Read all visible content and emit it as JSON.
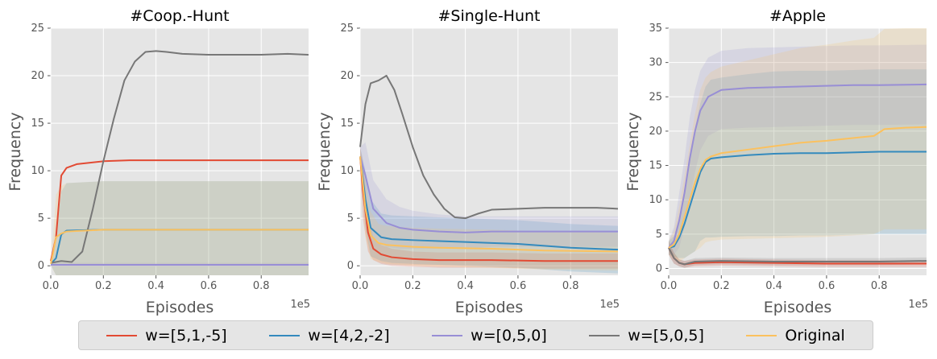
{
  "chart_data": [
    {
      "type": "line",
      "title": "#Coop.-Hunt",
      "xlabel": "Episodes",
      "ylabel": "Frequency",
      "x_offset_label": "1e5",
      "xlim": [
        0,
        0.98
      ],
      "ylim": [
        -1,
        25
      ],
      "xticks": [
        "0.0",
        "0.2",
        "0.4",
        "0.6",
        "0.8"
      ],
      "yticks": [
        0,
        5,
        10,
        15,
        20,
        25
      ],
      "series": [
        {
          "name": "w=[5,1,-5]",
          "color": "#E24A33",
          "x": [
            0,
            0.02,
            0.04,
            0.06,
            0.1,
            0.2,
            0.3,
            0.5,
            0.7,
            0.98
          ],
          "y": [
            0.5,
            3,
            9.5,
            10.3,
            10.7,
            11.0,
            11.1,
            11.1,
            11.1,
            11.1
          ],
          "band": [
            0,
            0,
            0,
            0,
            0,
            0,
            0,
            0,
            0,
            0
          ]
        },
        {
          "name": "w=[4,2,-2]",
          "color": "#348ABD",
          "x": [
            0,
            0.02,
            0.04,
            0.06,
            0.2,
            0.5,
            0.98
          ],
          "y": [
            0.2,
            0.8,
            3.3,
            3.7,
            3.8,
            3.8,
            3.8
          ],
          "band": [
            0.1,
            2,
            4.5,
            5,
            5.1,
            5.1,
            5.1
          ]
        },
        {
          "name": "w=[0,5,0]",
          "color": "#988ED5",
          "x": [
            0,
            0.2,
            0.5,
            0.98
          ],
          "y": [
            0.1,
            0.1,
            0.1,
            0.1
          ],
          "band": [
            0.2,
            0.2,
            0.2,
            0.2
          ]
        },
        {
          "name": "w=[5,0,5]",
          "color": "#777777",
          "x": [
            0,
            0.04,
            0.08,
            0.12,
            0.16,
            0.2,
            0.24,
            0.28,
            0.32,
            0.36,
            0.4,
            0.44,
            0.5,
            0.6,
            0.7,
            0.8,
            0.9,
            0.98
          ],
          "y": [
            0.3,
            0.5,
            0.4,
            1.5,
            6,
            11,
            15.5,
            19.5,
            21.5,
            22.5,
            22.6,
            22.5,
            22.3,
            22.2,
            22.2,
            22.2,
            22.3,
            22.2
          ],
          "band": [
            0,
            0,
            0,
            0,
            0,
            0,
            0,
            0,
            0,
            0,
            0,
            0,
            0,
            0,
            0,
            0,
            0,
            0
          ]
        },
        {
          "name": "Original",
          "color": "#FBC15E",
          "x": [
            0,
            0.01,
            0.02,
            0.04,
            0.06,
            0.2,
            0.5,
            0.98
          ],
          "y": [
            0.2,
            1.5,
            3.0,
            3.4,
            3.6,
            3.8,
            3.8,
            3.8
          ],
          "band": [
            0.1,
            2,
            4.5,
            5,
            5.1,
            5.1,
            5.1,
            5.1
          ]
        }
      ]
    },
    {
      "type": "line",
      "title": "#Single-Hunt",
      "xlabel": "Episodes",
      "ylabel": "Frequency",
      "x_offset_label": "1e5",
      "xlim": [
        0,
        0.98
      ],
      "ylim": [
        -1,
        25
      ],
      "xticks": [
        "0.0",
        "0.2",
        "0.4",
        "0.6",
        "0.8"
      ],
      "yticks": [
        0,
        5,
        10,
        15,
        20,
        25
      ],
      "series": [
        {
          "name": "w=[5,1,-5]",
          "color": "#E24A33",
          "x": [
            0,
            0.01,
            0.03,
            0.05,
            0.08,
            0.12,
            0.2,
            0.3,
            0.5,
            0.7,
            0.98
          ],
          "y": [
            11.5,
            8,
            3.5,
            1.8,
            1.2,
            0.9,
            0.7,
            0.6,
            0.6,
            0.5,
            0.5
          ],
          "band": [
            1,
            3,
            2,
            1.2,
            1,
            0.9,
            0.8,
            0.8,
            0.8,
            0.8,
            0.8
          ]
        },
        {
          "name": "w=[4,2,-2]",
          "color": "#348ABD",
          "x": [
            0,
            0.02,
            0.04,
            0.08,
            0.12,
            0.2,
            0.3,
            0.4,
            0.5,
            0.6,
            0.7,
            0.8,
            0.98
          ],
          "y": [
            11.5,
            7,
            4,
            3.0,
            2.8,
            2.7,
            2.6,
            2.5,
            2.4,
            2.3,
            2.1,
            1.9,
            1.7
          ],
          "band": [
            1,
            3,
            3,
            2.5,
            2.5,
            2.5,
            2.5,
            2.5,
            2.5,
            2.5,
            2.5,
            2.5,
            2.5
          ]
        },
        {
          "name": "w=[0,5,0]",
          "color": "#988ED5",
          "x": [
            0,
            0.02,
            0.05,
            0.1,
            0.15,
            0.2,
            0.3,
            0.4,
            0.5,
            0.6,
            0.8,
            0.98
          ],
          "y": [
            11.5,
            9.5,
            6,
            4.5,
            4,
            3.8,
            3.6,
            3.5,
            3.6,
            3.6,
            3.6,
            3.6
          ],
          "band": [
            1,
            3.5,
            3,
            2.5,
            2.2,
            2,
            1.8,
            1.7,
            1.6,
            1.6,
            1.6,
            1.6
          ]
        },
        {
          "name": "w=[5,0,5]",
          "color": "#777777",
          "x": [
            0,
            0.02,
            0.04,
            0.07,
            0.1,
            0.13,
            0.16,
            0.2,
            0.24,
            0.28,
            0.32,
            0.36,
            0.4,
            0.45,
            0.5,
            0.6,
            0.7,
            0.8,
            0.9,
            0.98
          ],
          "y": [
            12.5,
            17,
            19.2,
            19.5,
            20.0,
            18.5,
            16,
            12.5,
            9.5,
            7.5,
            6.0,
            5.1,
            5.0,
            5.5,
            5.9,
            6.0,
            6.1,
            6.1,
            6.1,
            6.0
          ],
          "band": [
            0,
            0,
            0,
            0,
            0,
            0,
            0,
            0,
            0,
            0,
            0,
            0,
            0,
            0,
            0,
            0,
            0,
            0,
            0,
            0
          ]
        },
        {
          "name": "Original",
          "color": "#FBC15E",
          "x": [
            0,
            0.02,
            0.04,
            0.07,
            0.1,
            0.2,
            0.3,
            0.5,
            0.7,
            0.98
          ],
          "y": [
            11.5,
            6,
            3.2,
            2.4,
            2.2,
            2.0,
            1.9,
            1.8,
            1.6,
            1.5
          ],
          "band": [
            1,
            3,
            2.5,
            2,
            2,
            2,
            2,
            2,
            2,
            2
          ]
        }
      ]
    },
    {
      "type": "line",
      "title": "#Apple",
      "xlabel": "Episodes",
      "ylabel": "Frequency",
      "x_offset_label": "1e5",
      "xlim": [
        0,
        0.98
      ],
      "ylim": [
        -1,
        35
      ],
      "xticks": [
        "0.0",
        "0.2",
        "0.4",
        "0.6",
        "0.8"
      ],
      "yticks": [
        0,
        5,
        10,
        15,
        20,
        25,
        30,
        35
      ],
      "series": [
        {
          "name": "w=[5,1,-5]",
          "color": "#E24A33",
          "x": [
            0,
            0.02,
            0.04,
            0.06,
            0.08,
            0.1,
            0.2,
            0.4,
            0.6,
            0.8,
            0.98
          ],
          "y": [
            3,
            1.5,
            0.8,
            0.6,
            0.7,
            0.8,
            0.9,
            0.8,
            0.7,
            0.7,
            0.7
          ],
          "band": [
            1,
            0.8,
            0.5,
            0.5,
            0.5,
            0.5,
            0.5,
            0.5,
            0.5,
            0.5,
            0.5
          ]
        },
        {
          "name": "w=[4,2,-2]",
          "color": "#348ABD",
          "x": [
            0,
            0.02,
            0.04,
            0.06,
            0.08,
            0.1,
            0.12,
            0.14,
            0.16,
            0.2,
            0.3,
            0.4,
            0.5,
            0.6,
            0.7,
            0.8,
            0.98
          ],
          "y": [
            3,
            3.2,
            4.5,
            6.5,
            9,
            11.5,
            14,
            15.5,
            16,
            16.2,
            16.5,
            16.7,
            16.8,
            16.8,
            16.9,
            17,
            17
          ],
          "band": [
            1,
            1.5,
            3,
            5,
            7,
            9,
            10,
            11,
            11.5,
            11.6,
            11.8,
            12,
            12,
            12,
            12,
            12,
            12
          ]
        },
        {
          "name": "w=[0,5,0]",
          "color": "#988ED5",
          "x": [
            0,
            0.02,
            0.04,
            0.06,
            0.08,
            0.1,
            0.12,
            0.15,
            0.2,
            0.3,
            0.5,
            0.7,
            0.8,
            0.98
          ],
          "y": [
            3,
            4,
            7,
            11,
            16,
            20,
            23,
            25,
            26,
            26.3,
            26.5,
            26.7,
            26.7,
            26.8
          ],
          "band": [
            1,
            2,
            4,
            5,
            6,
            6,
            5.8,
            5.7,
            5.7,
            5.8,
            5.8,
            5.8,
            5.8,
            5.8
          ]
        },
        {
          "name": "w=[5,0,5]",
          "color": "#777777",
          "x": [
            0,
            0.02,
            0.04,
            0.06,
            0.08,
            0.1,
            0.2,
            0.4,
            0.6,
            0.8,
            0.98
          ],
          "y": [
            3,
            1.5,
            0.8,
            0.6,
            0.8,
            1.0,
            1.1,
            1.0,
            1.0,
            1.0,
            1.1
          ],
          "band": [
            1,
            0.8,
            0.5,
            0.5,
            0.5,
            0.5,
            0.5,
            0.5,
            0.5,
            0.5,
            0.5
          ]
        },
        {
          "name": "Original",
          "color": "#FBC15E",
          "x": [
            0,
            0.02,
            0.04,
            0.06,
            0.08,
            0.1,
            0.12,
            0.14,
            0.16,
            0.2,
            0.3,
            0.4,
            0.5,
            0.6,
            0.7,
            0.78,
            0.82,
            0.9,
            0.98
          ],
          "y": [
            3,
            3.5,
            5,
            7.5,
            10,
            12.5,
            14.5,
            15.8,
            16.3,
            16.8,
            17.3,
            17.8,
            18.3,
            18.6,
            19,
            19.3,
            20.3,
            20.5,
            20.6
          ],
          "band": [
            1,
            2,
            4,
            6,
            8,
            10,
            11.5,
            12,
            12.3,
            12.6,
            13,
            13.4,
            13.8,
            14,
            14.2,
            14.3,
            14.6,
            14.8,
            14.9
          ]
        }
      ]
    }
  ]
}
